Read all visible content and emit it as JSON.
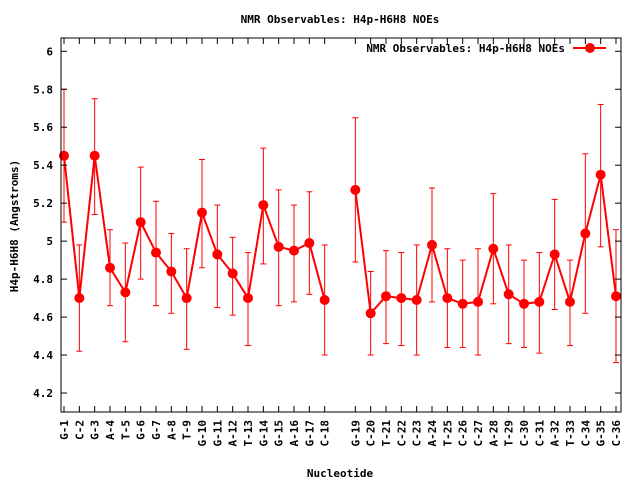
{
  "chart_data": {
    "type": "line",
    "title": "NMR Observables: H4p-H6H8 NOEs",
    "xlabel": "Nucleotide",
    "ylabel": "H4p-H6H8 (Angstroms)",
    "ylim": [
      4.1,
      6.07
    ],
    "yticks": [
      4.2,
      4.4,
      4.6,
      4.8,
      5,
      5.2,
      5.4,
      5.6,
      5.8,
      6
    ],
    "ytick_labels": [
      "4.2",
      "4.4",
      "4.6",
      "4.8",
      "5",
      "5.2",
      "5.4",
      "5.6",
      "5.8",
      "6"
    ],
    "grid": false,
    "legend_position": "top-right",
    "series": [
      {
        "name": "NMR Observables: H4p-H6H8 NOEs",
        "color": "#ff0000",
        "marker": "circle",
        "segments": [
          {
            "points": [
              {
                "label": "G-1",
                "y": 5.45,
                "lo": 5.1,
                "hi": 5.8
              },
              {
                "label": "C-2",
                "y": 4.7,
                "lo": 4.42,
                "hi": 4.98
              },
              {
                "label": "G-3",
                "y": 5.45,
                "lo": 5.14,
                "hi": 5.75
              },
              {
                "label": "A-4",
                "y": 4.86,
                "lo": 4.66,
                "hi": 5.06
              },
              {
                "label": "T-5",
                "y": 4.73,
                "lo": 4.47,
                "hi": 4.99
              },
              {
                "label": "G-6",
                "y": 5.1,
                "lo": 4.8,
                "hi": 5.39
              },
              {
                "label": "G-7",
                "y": 4.94,
                "lo": 4.66,
                "hi": 5.21
              },
              {
                "label": "A-8",
                "y": 4.84,
                "lo": 4.62,
                "hi": 5.04
              },
              {
                "label": "T-9",
                "y": 4.7,
                "lo": 4.43,
                "hi": 4.96
              },
              {
                "label": "G-10",
                "y": 5.15,
                "lo": 4.86,
                "hi": 5.43
              },
              {
                "label": "G-11",
                "y": 4.93,
                "lo": 4.65,
                "hi": 5.19
              },
              {
                "label": "A-12",
                "y": 4.83,
                "lo": 4.61,
                "hi": 5.02
              },
              {
                "label": "T-13",
                "y": 4.7,
                "lo": 4.45,
                "hi": 4.94
              },
              {
                "label": "G-14",
                "y": 5.19,
                "lo": 4.88,
                "hi": 5.49
              },
              {
                "label": "G-15",
                "y": 4.97,
                "lo": 4.66,
                "hi": 5.27
              },
              {
                "label": "A-16",
                "y": 4.95,
                "lo": 4.68,
                "hi": 5.19
              },
              {
                "label": "G-17",
                "y": 4.99,
                "lo": 4.72,
                "hi": 5.26
              },
              {
                "label": "C-18",
                "y": 4.69,
                "lo": 4.4,
                "hi": 4.98
              }
            ]
          },
          {
            "points": [
              {
                "label": "G-19",
                "y": 5.27,
                "lo": 4.89,
                "hi": 5.65
              },
              {
                "label": "C-20",
                "y": 4.62,
                "lo": 4.4,
                "hi": 4.84
              },
              {
                "label": "T-21",
                "y": 4.71,
                "lo": 4.46,
                "hi": 4.95
              },
              {
                "label": "C-22",
                "y": 4.7,
                "lo": 4.45,
                "hi": 4.94
              },
              {
                "label": "C-23",
                "y": 4.69,
                "lo": 4.4,
                "hi": 4.98
              },
              {
                "label": "A-24",
                "y": 4.98,
                "lo": 4.68,
                "hi": 5.28
              },
              {
                "label": "T-25",
                "y": 4.7,
                "lo": 4.44,
                "hi": 4.96
              },
              {
                "label": "C-26",
                "y": 4.67,
                "lo": 4.44,
                "hi": 4.9
              },
              {
                "label": "C-27",
                "y": 4.68,
                "lo": 4.4,
                "hi": 4.96
              },
              {
                "label": "A-28",
                "y": 4.96,
                "lo": 4.67,
                "hi": 5.25
              },
              {
                "label": "T-29",
                "y": 4.72,
                "lo": 4.46,
                "hi": 4.98
              },
              {
                "label": "C-30",
                "y": 4.67,
                "lo": 4.44,
                "hi": 4.9
              },
              {
                "label": "C-31",
                "y": 4.68,
                "lo": 4.41,
                "hi": 4.94
              },
              {
                "label": "A-32",
                "y": 4.93,
                "lo": 4.64,
                "hi": 5.22
              },
              {
                "label": "T-33",
                "y": 4.68,
                "lo": 4.45,
                "hi": 4.9
              },
              {
                "label": "C-34",
                "y": 5.04,
                "lo": 4.62,
                "hi": 5.46
              },
              {
                "label": "G-35",
                "y": 5.35,
                "lo": 4.97,
                "hi": 5.72
              },
              {
                "label": "C-36",
                "y": 4.71,
                "lo": 4.36,
                "hi": 5.06
              }
            ]
          }
        ]
      }
    ]
  }
}
